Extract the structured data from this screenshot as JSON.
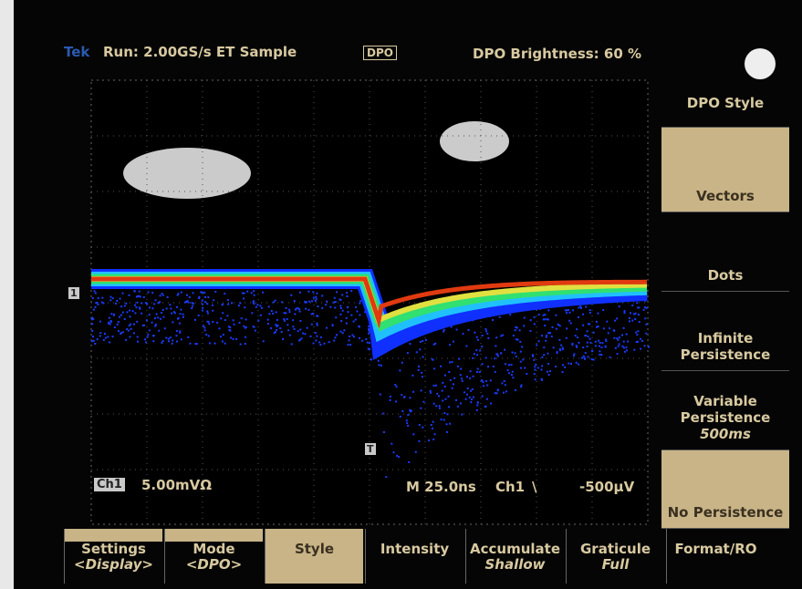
{
  "header": {
    "brand": "Tek",
    "acquisition": "Run: 2.00GS/s ET Sample",
    "mode_badge": "DPO",
    "brightness": "DPO Brightness: 60 %"
  },
  "side_menu": {
    "title": "DPO Style",
    "items": [
      {
        "label": "Vectors"
      },
      {
        "label": "Dots"
      },
      {
        "label": "Infinite Persistence"
      },
      {
        "label": "Variable Persistence",
        "value": "500ms"
      },
      {
        "label": "No Persistence"
      }
    ]
  },
  "bottom_menu": {
    "items": [
      {
        "label": "Settings",
        "value": "<Display>"
      },
      {
        "label": "Mode",
        "value": "<DPO>"
      },
      {
        "label": "Style"
      },
      {
        "label": "Intensity"
      },
      {
        "label": "Accumulate",
        "value": "Shallow"
      },
      {
        "label": "Graticule",
        "value": "Full"
      },
      {
        "label": "Format/RO"
      }
    ]
  },
  "readouts": {
    "channel": "Ch1",
    "scale": "5.00mVΩ",
    "timebase": "M 25.0ns",
    "trigger_source": "Ch1",
    "trigger_slope": "\\",
    "trigger_level": "-500µV"
  },
  "markers": {
    "channel": "1",
    "trigger": "T"
  }
}
